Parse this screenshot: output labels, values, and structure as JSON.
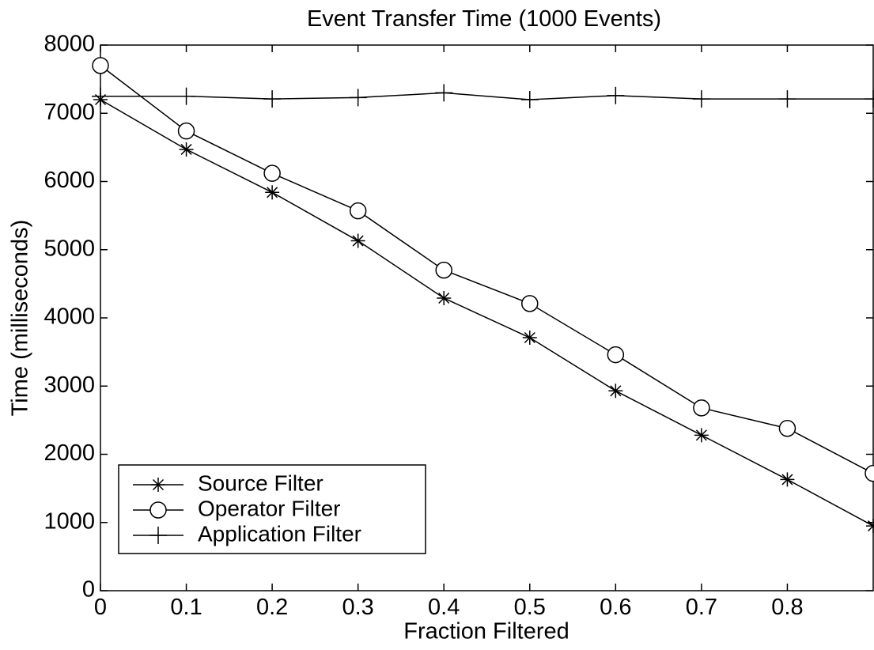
{
  "chart_data": {
    "type": "line",
    "title": "Event Transfer Time (1000 Events)",
    "xlabel": "Fraction Filtered",
    "ylabel": "Time (milliseconds)",
    "xlim": [
      0,
      0.9
    ],
    "ylim": [
      0,
      8000
    ],
    "x_ticks": [
      0,
      0.1,
      0.2,
      0.3,
      0.4,
      0.5,
      0.6,
      0.7,
      0.8
    ],
    "x_tick_labels": [
      "0",
      "0.1",
      "0.2",
      "0.3",
      "0.4",
      "0.5",
      "0.6",
      "0.7",
      "0.8"
    ],
    "y_ticks": [
      0,
      1000,
      2000,
      3000,
      4000,
      5000,
      6000,
      7000,
      8000
    ],
    "y_tick_labels": [
      "0",
      "1000",
      "2000",
      "3000",
      "4000",
      "5000",
      "6000",
      "7000",
      "8000"
    ],
    "x": [
      0,
      0.1,
      0.2,
      0.3,
      0.4,
      0.5,
      0.6,
      0.7,
      0.8,
      0.9
    ],
    "series": [
      {
        "name": "Source Filter",
        "marker": "asterisk",
        "color": "#000000",
        "values": [
          7200,
          6470,
          5840,
          5130,
          4290,
          3710,
          2930,
          2280,
          1630,
          950
        ]
      },
      {
        "name": "Operator Filter",
        "marker": "circle",
        "color": "#000000",
        "values": [
          7700,
          6740,
          6120,
          5570,
          4700,
          4210,
          3460,
          2680,
          2380,
          1720
        ]
      },
      {
        "name": "Application Filter",
        "marker": "plus",
        "color": "#000000",
        "values": [
          7250,
          7250,
          7210,
          7230,
          7300,
          7200,
          7260,
          7210,
          7210,
          7210
        ]
      }
    ],
    "grid": false,
    "legend": "bottom-left"
  }
}
